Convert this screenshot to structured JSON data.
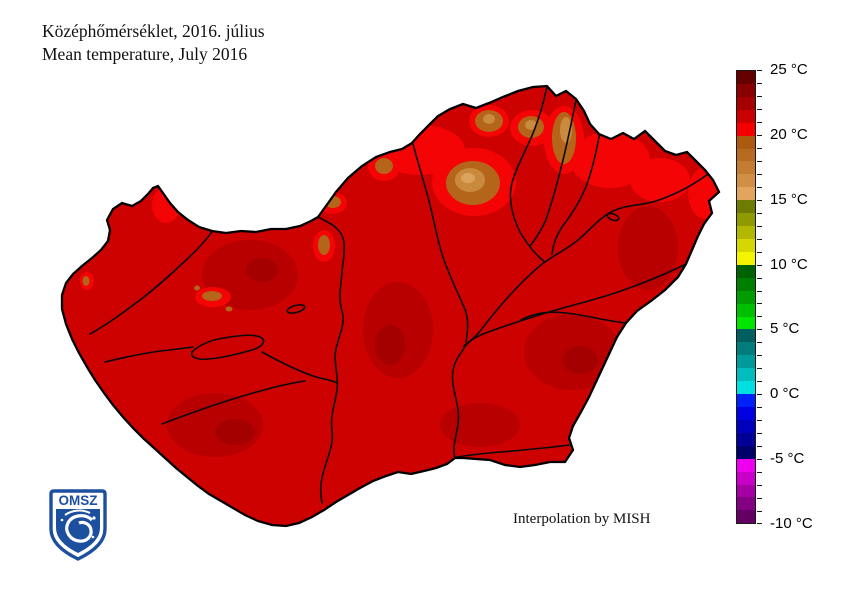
{
  "title": {
    "hungarian": "Középhőmérséklet, 2016. július",
    "english": "Mean temperature, July 2016"
  },
  "attribution": "Interpolation by MISH",
  "logo": {
    "label": "OMSZ",
    "blue": "#1d4f9f"
  },
  "colorbar": {
    "unit": "°C",
    "degrees_per_cell": 1,
    "max": 25,
    "min": -10,
    "labels": [
      "25 °C",
      "20 °C",
      "15 °C",
      "10 °C",
      "5 °C",
      "0 °C",
      "-5 °C",
      "-10 °C"
    ],
    "cells_top_to_bottom": [
      "#640000",
      "#880000",
      "#a40000",
      "#c80000",
      "#f40000",
      "#ab5a10",
      "#b76a20",
      "#c37c31",
      "#d08f45",
      "#e1a55d",
      "#6e7b00",
      "#8f9900",
      "#b2b800",
      "#d6d600",
      "#f4f400",
      "#006200",
      "#007e00",
      "#009c00",
      "#00bf00",
      "#00e600",
      "#005e5e",
      "#007c7c",
      "#009a9a",
      "#00bcbc",
      "#00e0e0",
      "#0020f8",
      "#0000e2",
      "#0000bc",
      "#000096",
      "#00006a",
      "#ee00ee",
      "#c800c8",
      "#a400a4",
      "#820082",
      "#640064"
    ]
  },
  "map_palette": {
    "base_red": "#ce0101",
    "dark_red": "#b80000",
    "deep_red": "#a40000",
    "hot_red": "#f40404",
    "brown_dark": "#b4651a",
    "brown_mid": "#c98a3e",
    "brown_light": "#dca35f",
    "outline": "#000000",
    "water_line": "#0a0a0a"
  }
}
